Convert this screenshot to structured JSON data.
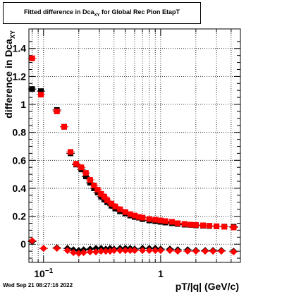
{
  "title": {
    "main": "Fitted difference in Dca",
    "sub": "XY",
    "tail": " for Global Rec Pion EtapT"
  },
  "footer": "Wed Sep 21 08:27:16 2022",
  "colors": {
    "black_series": "#000000",
    "red_series": "#ff0000",
    "grid": "#000000",
    "frame": "#000000"
  },
  "chart_data": {
    "type": "scatter",
    "xlabel": "pT/|q| (GeV/c)",
    "ylabel": "difference in Dca",
    "ylabel_sub": "XY",
    "xscale": "log",
    "xlim": [
      0.075,
      4.8
    ],
    "ylim": [
      -0.13,
      1.54
    ],
    "grid": true,
    "x_ticks": [
      {
        "value": 0.1,
        "label": "10",
        "exp": "−1"
      },
      {
        "value": 1,
        "label": "1",
        "exp": ""
      }
    ],
    "y_ticks": [
      {
        "value": 0,
        "label": "0"
      },
      {
        "value": 0.2,
        "label": "0.2"
      },
      {
        "value": 0.4,
        "label": "0.4"
      },
      {
        "value": 0.6,
        "label": "0.6"
      },
      {
        "value": 0.8,
        "label": "0.8"
      },
      {
        "value": 1.0,
        "label": "1"
      },
      {
        "value": 1.2,
        "label": "1.2"
      },
      {
        "value": 1.4,
        "label": "1.4"
      }
    ],
    "series": [
      {
        "color": "black",
        "marker": "square",
        "x": [
          0.08,
          0.095,
          0.13,
          0.15,
          0.17,
          0.19,
          0.21,
          0.23,
          0.25,
          0.27,
          0.29,
          0.31,
          0.33,
          0.35,
          0.38,
          0.41,
          0.45,
          0.5,
          0.55,
          0.6,
          0.65,
          0.7,
          0.8,
          0.9,
          1.0,
          1.1,
          1.25,
          1.4,
          1.6,
          1.8,
          2.0,
          2.3,
          2.6,
          3.0,
          3.5,
          4.2
        ],
        "y": [
          1.11,
          1.095,
          0.96,
          0.84,
          0.65,
          0.57,
          0.535,
          0.485,
          0.44,
          0.4,
          0.37,
          0.34,
          0.32,
          0.3,
          0.275,
          0.255,
          0.235,
          0.22,
          0.205,
          0.195,
          0.19,
          0.18,
          0.17,
          0.165,
          0.16,
          0.155,
          0.15,
          0.145,
          0.14,
          0.138,
          0.135,
          0.132,
          0.13,
          0.128,
          0.126,
          0.125
        ]
      },
      {
        "color": "red",
        "marker": "square",
        "x": [
          0.08,
          0.095,
          0.13,
          0.15,
          0.17,
          0.19,
          0.21,
          0.23,
          0.25,
          0.27,
          0.29,
          0.31,
          0.33,
          0.35,
          0.38,
          0.41,
          0.45,
          0.5,
          0.55,
          0.6,
          0.65,
          0.7,
          0.8,
          0.9,
          1.0,
          1.1,
          1.25,
          1.4,
          1.6,
          1.8,
          2.0,
          2.3,
          2.6,
          3.0,
          3.5,
          4.2
        ],
        "y": [
          1.33,
          1.07,
          0.95,
          0.84,
          0.66,
          0.575,
          0.55,
          0.51,
          0.46,
          0.42,
          0.39,
          0.36,
          0.34,
          0.315,
          0.29,
          0.27,
          0.25,
          0.23,
          0.215,
          0.205,
          0.195,
          0.19,
          0.18,
          0.175,
          0.17,
          0.165,
          0.16,
          0.15,
          0.145,
          0.14,
          0.138,
          0.135,
          0.132,
          0.128,
          0.125,
          0.12
        ]
      },
      {
        "color": "black",
        "marker": "diamond",
        "x": [
          0.08,
          0.1,
          0.13,
          0.16,
          0.18,
          0.2,
          0.22,
          0.25,
          0.28,
          0.31,
          0.34,
          0.37,
          0.4,
          0.45,
          0.5,
          0.55,
          0.6,
          0.7,
          0.8,
          0.9,
          1.0,
          1.2,
          1.4,
          1.7,
          2.0,
          2.4,
          2.8,
          3.3,
          4.2
        ],
        "y": [
          0.02,
          -0.03,
          -0.025,
          -0.03,
          -0.04,
          -0.045,
          -0.04,
          -0.035,
          -0.03,
          -0.03,
          -0.035,
          -0.03,
          -0.035,
          -0.03,
          -0.03,
          -0.03,
          -0.035,
          -0.03,
          -0.03,
          -0.03,
          -0.035,
          -0.035,
          -0.04,
          -0.04,
          -0.045,
          -0.045,
          -0.045,
          -0.045,
          -0.05
        ]
      },
      {
        "color": "red",
        "marker": "diamond",
        "x": [
          0.08,
          0.1,
          0.13,
          0.16,
          0.18,
          0.2,
          0.22,
          0.25,
          0.28,
          0.31,
          0.34,
          0.37,
          0.4,
          0.45,
          0.5,
          0.55,
          0.6,
          0.7,
          0.8,
          0.9,
          1.0,
          1.2,
          1.4,
          1.7,
          2.0,
          2.4,
          2.8,
          3.3,
          4.2
        ],
        "y": [
          0.025,
          -0.03,
          -0.03,
          -0.045,
          -0.06,
          -0.065,
          -0.06,
          -0.055,
          -0.055,
          -0.05,
          -0.05,
          -0.05,
          -0.045,
          -0.045,
          -0.045,
          -0.045,
          -0.045,
          -0.045,
          -0.045,
          -0.045,
          -0.045,
          -0.045,
          -0.05,
          -0.05,
          -0.05,
          -0.05,
          -0.05,
          -0.05,
          -0.055
        ]
      }
    ]
  }
}
